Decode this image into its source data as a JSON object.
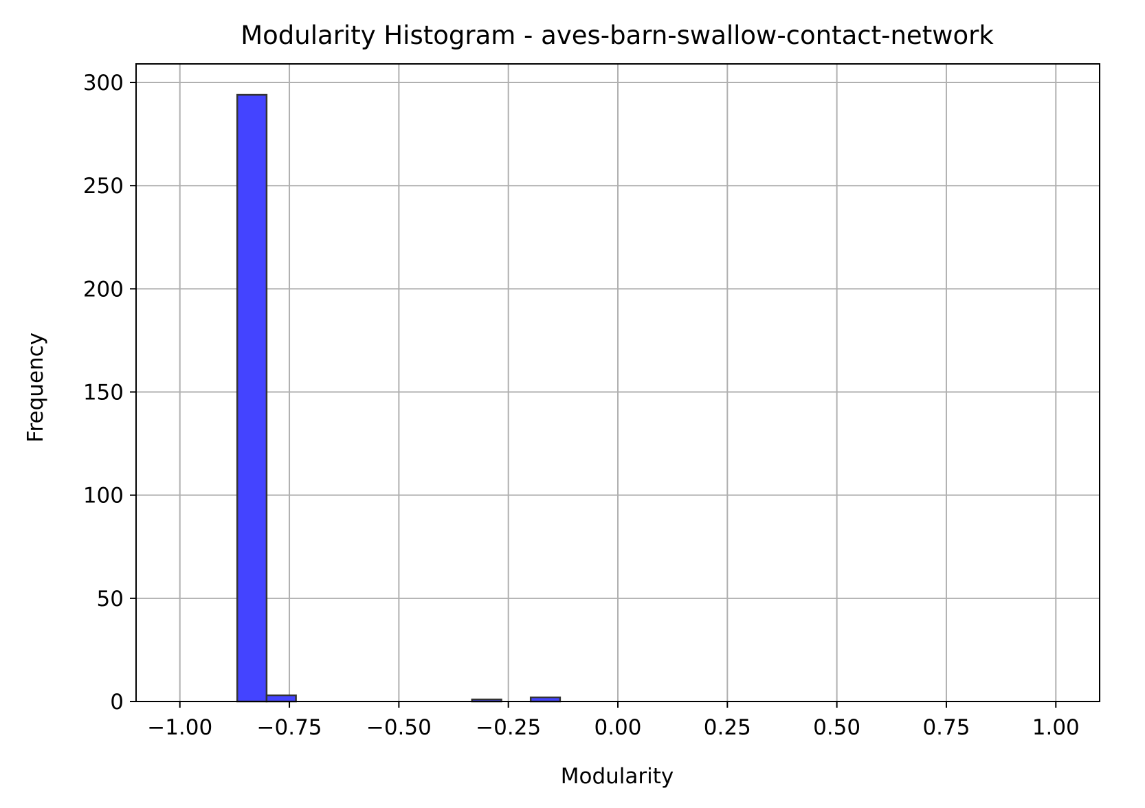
{
  "chart_data": {
    "type": "bar",
    "title": "Modularity Histogram - aves-barn-swallow-contact-network",
    "xlabel": "Modularity",
    "ylabel": "Frequency",
    "xlim": [
      -1.1,
      1.1
    ],
    "ylim": [
      0,
      309
    ],
    "xticks": [
      -1.0,
      -0.75,
      -0.5,
      -0.25,
      0.0,
      0.25,
      0.5,
      0.75,
      1.0
    ],
    "xtick_labels": [
      "−1.00",
      "−0.75",
      "−0.50",
      "−0.25",
      "0.00",
      "0.25",
      "0.50",
      "0.75",
      "1.00"
    ],
    "yticks": [
      0,
      50,
      100,
      150,
      200,
      250,
      300
    ],
    "ytick_labels": [
      "0",
      "50",
      "100",
      "150",
      "200",
      "250",
      "300"
    ],
    "grid": true,
    "bar_color": "#4444ff",
    "edge_color": "#333333",
    "bins": [
      {
        "x0": -0.869,
        "x1": -0.802,
        "count": 294
      },
      {
        "x0": -0.802,
        "x1": -0.735,
        "count": 3
      },
      {
        "x0": -0.333,
        "x1": -0.266,
        "count": 1
      },
      {
        "x0": -0.199,
        "x1": -0.132,
        "count": 2
      }
    ]
  }
}
